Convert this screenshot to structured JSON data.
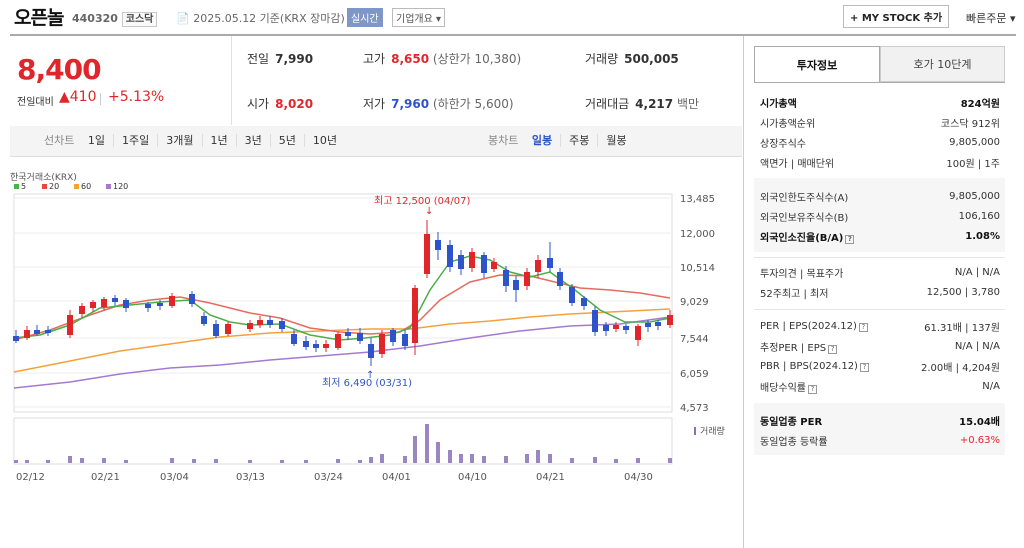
{
  "header": {
    "name": "오픈놀",
    "code": "440320",
    "market": "코스닥",
    "date_text": "2025.05.12 기준(KRX 장마감)",
    "live_btn": "실시간",
    "corp_btn": "기업개요",
    "mystock_btn": "+ MY STOCK 추가",
    "quick_order": "빠른주문"
  },
  "price": {
    "current": "8,400",
    "change_label": "전일대비",
    "change": "▲410",
    "rate": "+5.13%"
  },
  "stats": {
    "prev_label": "전일",
    "prev": "7,990",
    "high_label": "고가",
    "high": "8,650",
    "high_limit": "(상한가 10,380)",
    "volume_label": "거래량",
    "volume": "500,005",
    "open_label": "시가",
    "open": "8,020",
    "low_label": "저가",
    "low": "7,960",
    "low_limit": "(하한가 5,600)",
    "amount_label": "거래대금",
    "amount": "4,217",
    "amount_unit": "백만"
  },
  "toolbar": {
    "line_label": "선차트",
    "periods": [
      "1일",
      "1주일",
      "3개월",
      "1년",
      "3년",
      "5년",
      "10년"
    ],
    "candle_label": "봉차트",
    "candles": [
      "일봉",
      "주봉",
      "월봉"
    ]
  },
  "chart_data": {
    "type": "candlestick",
    "source": "한국거래소(KRX)",
    "legend": [
      "5",
      "20",
      "60",
      "120"
    ],
    "legend_colors": [
      "#49b548",
      "#e34a3e",
      "#f5a13b",
      "#a37ad0"
    ],
    "y_ticks": [
      "13,485",
      "12,000",
      "10,514",
      "9,029",
      "7,544",
      "6,059",
      "4,573"
    ],
    "x_ticks": [
      "02/12",
      "02/21",
      "03/04",
      "03/13",
      "03/24",
      "04/01",
      "04/10",
      "04/21",
      "04/30"
    ],
    "high_note": "최고 12,500 (04/07)",
    "low_note": "최저 6,490 (03/31)",
    "volume_label": "거래량"
  },
  "panel": {
    "tab1": "투자정보",
    "tab2": "호가 10단계",
    "r1": [
      [
        "시가총액",
        "824억원"
      ],
      [
        "시가총액순위",
        "코스닥 912위"
      ],
      [
        "상장주식수",
        "9,805,000"
      ],
      [
        "액면가 | 매매단위",
        "100원 | 1주"
      ]
    ],
    "r2": [
      [
        "외국인한도주식수(A)",
        "9,805,000"
      ],
      [
        "외국인보유주식수(B)",
        "106,160"
      ],
      [
        "외국인소진율(B/A)",
        "1.08%"
      ]
    ],
    "r3": [
      [
        "투자의견 | 목표주가",
        "N/A | N/A"
      ],
      [
        "52주최고 | 최저",
        "12,500 | 3,780"
      ]
    ],
    "r4": [
      [
        "PER | EPS(2024.12)",
        "61.31배 | 137원"
      ],
      [
        "추정PER | EPS",
        "N/A | N/A"
      ],
      [
        "PBR | BPS(2024.12)",
        "2.00배 | 4,204원"
      ],
      [
        "배당수익률",
        "N/A"
      ]
    ],
    "r5": [
      [
        "동일업종 PER",
        "15.04배"
      ],
      [
        "동일업종 등락률",
        "+0.63%"
      ]
    ]
  }
}
